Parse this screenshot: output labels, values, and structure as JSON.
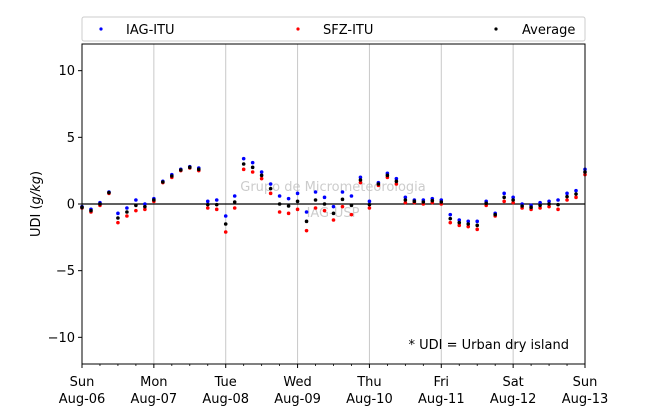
{
  "chart_data": {
    "type": "scatter",
    "ylabel": "UDI (g/kg)",
    "ylabel_parts": {
      "prefix": "UDI (",
      "italic": "g/kg",
      "suffix": ")"
    },
    "ylim": [
      -12,
      12
    ],
    "yticks": [
      -10,
      -5,
      0,
      5,
      10
    ],
    "ytick_labels": [
      "−10",
      "−5",
      "0",
      "5",
      "10"
    ],
    "xlim": [
      "2023-08-06",
      "2023-08-13"
    ],
    "xticks": [
      {
        "day": "Sun",
        "date": "Aug-06"
      },
      {
        "day": "Mon",
        "date": "Aug-07"
      },
      {
        "day": "Tue",
        "date": "Aug-08"
      },
      {
        "day": "Wed",
        "date": "Aug-09"
      },
      {
        "day": "Thu",
        "date": "Aug-10"
      },
      {
        "day": "Fri",
        "date": "Aug-11"
      },
      {
        "day": "Sat",
        "date": "Aug-12"
      },
      {
        "day": "Sun",
        "date": "Aug-13"
      }
    ],
    "grid": "vertical",
    "zero_line": 0,
    "legend": {
      "placement": "top",
      "entries": [
        "IAG-ITU",
        "SFZ-ITU",
        "Average"
      ]
    },
    "annotation": "* UDI = Urban dry island",
    "watermark": [
      "Grupo de Micrometeorologia",
      "IAG-USP"
    ],
    "series": [
      {
        "name": "IAG-ITU",
        "color": "#0000ff",
        "x": [
          "2023-08-06T00:00",
          "2023-08-06T03:00",
          "2023-08-06T06:00",
          "2023-08-06T09:00",
          "2023-08-06T12:00",
          "2023-08-06T15:00",
          "2023-08-06T18:00",
          "2023-08-06T21:00",
          "2023-08-07T00:00",
          "2023-08-07T03:00",
          "2023-08-07T06:00",
          "2023-08-07T09:00",
          "2023-08-07T12:00",
          "2023-08-07T15:00",
          "2023-08-07T18:00",
          "2023-08-07T21:00",
          "2023-08-08T00:00",
          "2023-08-08T03:00",
          "2023-08-08T06:00",
          "2023-08-08T09:00",
          "2023-08-08T12:00",
          "2023-08-08T15:00",
          "2023-08-08T18:00",
          "2023-08-08T21:00",
          "2023-08-09T00:00",
          "2023-08-09T03:00",
          "2023-08-09T06:00",
          "2023-08-09T09:00",
          "2023-08-09T12:00",
          "2023-08-09T15:00",
          "2023-08-09T18:00",
          "2023-08-09T21:00",
          "2023-08-10T00:00",
          "2023-08-10T03:00",
          "2023-08-10T06:00",
          "2023-08-10T09:00",
          "2023-08-10T12:00",
          "2023-08-10T15:00",
          "2023-08-10T18:00",
          "2023-08-10T21:00",
          "2023-08-11T00:00",
          "2023-08-11T03:00",
          "2023-08-11T06:00",
          "2023-08-11T09:00",
          "2023-08-11T12:00",
          "2023-08-11T15:00",
          "2023-08-11T18:00",
          "2023-08-11T21:00",
          "2023-08-12T00:00",
          "2023-08-12T03:00",
          "2023-08-12T06:00",
          "2023-08-12T09:00",
          "2023-08-12T12:00",
          "2023-08-12T15:00",
          "2023-08-12T18:00",
          "2023-08-12T21:00",
          "2023-08-13T00:00"
        ],
        "values": [
          -0.2,
          -0.4,
          0.1,
          0.9,
          -0.7,
          -0.3,
          0.3,
          0.0,
          0.4,
          1.7,
          2.2,
          2.6,
          2.8,
          2.7,
          0.2,
          0.3,
          -0.9,
          0.6,
          3.4,
          3.1,
          2.4,
          1.5,
          0.6,
          0.4,
          0.8,
          -0.6,
          0.9,
          0.5,
          -0.2,
          0.9,
          0.6,
          2.0,
          0.2,
          1.6,
          2.3,
          1.9,
          0.5,
          0.3,
          0.3,
          0.4,
          0.3,
          -0.8,
          -1.2,
          -1.3,
          -1.3,
          0.2,
          -0.7,
          0.8,
          0.5,
          0.0,
          -0.1,
          0.1,
          0.2,
          0.3,
          0.8,
          1.0,
          2.6
        ]
      },
      {
        "name": "SFZ-ITU",
        "color": "#ff0000",
        "x": [
          "2023-08-06T00:00",
          "2023-08-06T03:00",
          "2023-08-06T06:00",
          "2023-08-06T09:00",
          "2023-08-06T12:00",
          "2023-08-06T15:00",
          "2023-08-06T18:00",
          "2023-08-06T21:00",
          "2023-08-07T00:00",
          "2023-08-07T03:00",
          "2023-08-07T06:00",
          "2023-08-07T09:00",
          "2023-08-07T12:00",
          "2023-08-07T15:00",
          "2023-08-07T18:00",
          "2023-08-07T21:00",
          "2023-08-08T00:00",
          "2023-08-08T03:00",
          "2023-08-08T06:00",
          "2023-08-08T09:00",
          "2023-08-08T12:00",
          "2023-08-08T15:00",
          "2023-08-08T18:00",
          "2023-08-08T21:00",
          "2023-08-09T00:00",
          "2023-08-09T03:00",
          "2023-08-09T06:00",
          "2023-08-09T09:00",
          "2023-08-09T12:00",
          "2023-08-09T15:00",
          "2023-08-09T18:00",
          "2023-08-09T21:00",
          "2023-08-10T00:00",
          "2023-08-10T03:00",
          "2023-08-10T06:00",
          "2023-08-10T09:00",
          "2023-08-10T12:00",
          "2023-08-10T15:00",
          "2023-08-10T18:00",
          "2023-08-10T21:00",
          "2023-08-11T00:00",
          "2023-08-11T03:00",
          "2023-08-11T06:00",
          "2023-08-11T09:00",
          "2023-08-11T12:00",
          "2023-08-11T15:00",
          "2023-08-11T18:00",
          "2023-08-11T21:00",
          "2023-08-12T00:00",
          "2023-08-12T03:00",
          "2023-08-12T06:00",
          "2023-08-12T09:00",
          "2023-08-12T12:00",
          "2023-08-12T15:00",
          "2023-08-12T18:00",
          "2023-08-12T21:00",
          "2023-08-13T00:00"
        ],
        "values": [
          -0.3,
          -0.6,
          -0.1,
          0.8,
          -1.4,
          -0.9,
          -0.5,
          -0.4,
          0.2,
          1.6,
          2.0,
          2.5,
          2.7,
          2.5,
          -0.3,
          -0.4,
          -2.1,
          -0.3,
          2.6,
          2.4,
          1.9,
          0.8,
          -0.6,
          -0.7,
          -0.4,
          -2.0,
          -0.3,
          -0.5,
          -1.2,
          -0.2,
          -0.8,
          1.6,
          -0.3,
          1.4,
          2.0,
          1.5,
          0.1,
          0.1,
          0.0,
          0.1,
          0.0,
          -1.4,
          -1.6,
          -1.7,
          -1.9,
          -0.1,
          -0.9,
          0.2,
          0.1,
          -0.3,
          -0.4,
          -0.3,
          -0.2,
          -0.4,
          0.3,
          0.5,
          2.2
        ]
      },
      {
        "name": "Average",
        "color": "#000000",
        "x": [
          "2023-08-06T00:00",
          "2023-08-06T03:00",
          "2023-08-06T06:00",
          "2023-08-06T09:00",
          "2023-08-06T12:00",
          "2023-08-06T15:00",
          "2023-08-06T18:00",
          "2023-08-06T21:00",
          "2023-08-07T00:00",
          "2023-08-07T03:00",
          "2023-08-07T06:00",
          "2023-08-07T09:00",
          "2023-08-07T12:00",
          "2023-08-07T15:00",
          "2023-08-07T18:00",
          "2023-08-07T21:00",
          "2023-08-08T00:00",
          "2023-08-08T03:00",
          "2023-08-08T06:00",
          "2023-08-08T09:00",
          "2023-08-08T12:00",
          "2023-08-08T15:00",
          "2023-08-08T18:00",
          "2023-08-08T21:00",
          "2023-08-09T00:00",
          "2023-08-09T03:00",
          "2023-08-09T06:00",
          "2023-08-09T09:00",
          "2023-08-09T12:00",
          "2023-08-09T15:00",
          "2023-08-09T18:00",
          "2023-08-09T21:00",
          "2023-08-10T00:00",
          "2023-08-10T03:00",
          "2023-08-10T06:00",
          "2023-08-10T09:00",
          "2023-08-10T12:00",
          "2023-08-10T15:00",
          "2023-08-10T18:00",
          "2023-08-10T21:00",
          "2023-08-11T00:00",
          "2023-08-11T03:00",
          "2023-08-11T06:00",
          "2023-08-11T09:00",
          "2023-08-11T12:00",
          "2023-08-11T15:00",
          "2023-08-11T18:00",
          "2023-08-11T21:00",
          "2023-08-12T00:00",
          "2023-08-12T03:00",
          "2023-08-12T06:00",
          "2023-08-12T09:00",
          "2023-08-12T12:00",
          "2023-08-12T15:00",
          "2023-08-12T18:00",
          "2023-08-12T21:00",
          "2023-08-13T00:00"
        ],
        "values": [
          -0.25,
          -0.5,
          0.0,
          0.85,
          -1.05,
          -0.6,
          -0.1,
          -0.2,
          0.3,
          1.65,
          2.1,
          2.55,
          2.75,
          2.6,
          -0.05,
          -0.05,
          -1.5,
          0.15,
          3.0,
          2.75,
          2.15,
          1.15,
          0.0,
          -0.15,
          0.2,
          -1.3,
          0.3,
          0.0,
          -0.7,
          0.35,
          -0.1,
          1.8,
          -0.05,
          1.5,
          2.15,
          1.7,
          0.3,
          0.2,
          0.15,
          0.25,
          0.15,
          -1.1,
          -1.4,
          -1.5,
          -1.6,
          0.05,
          -0.8,
          0.5,
          0.3,
          -0.15,
          -0.25,
          -0.1,
          0.0,
          -0.05,
          0.55,
          0.75,
          2.4
        ]
      }
    ]
  }
}
